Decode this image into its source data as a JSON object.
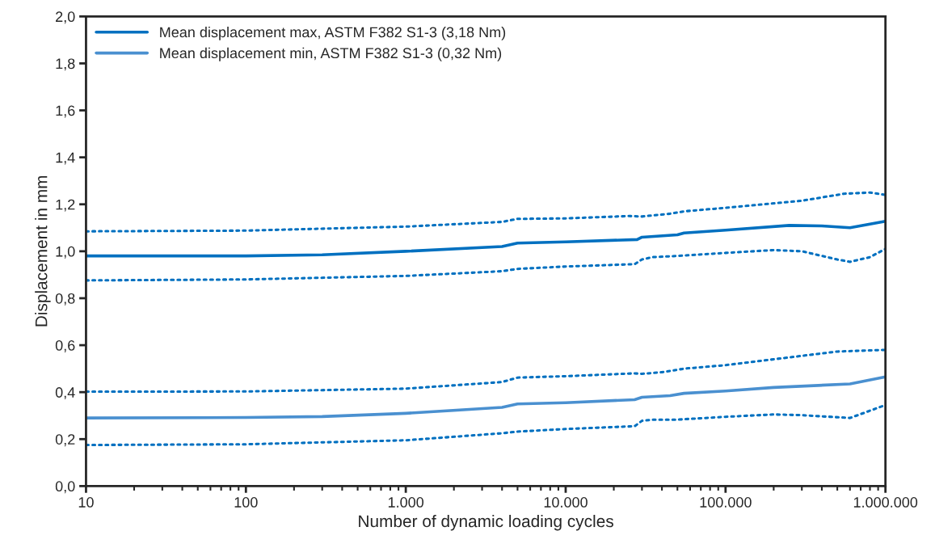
{
  "chart_data": {
    "type": "line",
    "xlabel": "Number of dynamic loading cycles",
    "ylabel": "Displacement in mm",
    "log": "x",
    "grid": false,
    "legend": "top left",
    "xlim": [
      10,
      1000000
    ],
    "xticks": [
      {
        "value": 10,
        "label": "10"
      },
      {
        "value": 100,
        "label": "100"
      },
      {
        "value": 1000,
        "label": "1.000"
      },
      {
        "value": 10000,
        "label": "10.000"
      },
      {
        "value": 100000,
        "label": "100.000"
      },
      {
        "value": 1000000,
        "label": "1.000.000"
      }
    ],
    "ylim": [
      0,
      2
    ],
    "yticks": [
      {
        "value": 0,
        "label": "0,0"
      },
      {
        "value": 0.2,
        "label": "0,2"
      },
      {
        "value": 0.4,
        "label": "0,4"
      },
      {
        "value": 0.6,
        "label": "0,6"
      },
      {
        "value": 0.8,
        "label": "0,8"
      },
      {
        "value": 1.0,
        "label": "1,0"
      },
      {
        "value": 1.2,
        "label": "1,2"
      },
      {
        "value": 1.4,
        "label": "1,4"
      },
      {
        "value": 1.6,
        "label": "1,6"
      },
      {
        "value": 1.8,
        "label": "1,8"
      },
      {
        "value": 2.0,
        "label": "2,0"
      }
    ],
    "series": [
      {
        "name": "Mean displacement max, ASTM F382 S1-3 (3,18 Nm)",
        "color": "#0070c0",
        "line_style": "solid",
        "x": [
          10,
          100,
          300,
          1000,
          4000,
          5000,
          10000,
          28000,
          30000,
          50000,
          55000,
          100000,
          250000,
          400000,
          600000,
          1000000
        ],
        "values": [
          0.98,
          0.98,
          0.985,
          1.0,
          1.02,
          1.035,
          1.04,
          1.05,
          1.06,
          1.07,
          1.078,
          1.09,
          1.11,
          1.108,
          1.1,
          1.128
        ]
      },
      {
        "name": "Mean displacement min, ASTM F382 S1-3 (0,32 Nm)",
        "color": "#4a90d0",
        "line_style": "solid",
        "x": [
          10,
          100,
          300,
          1000,
          4000,
          5000,
          10000,
          27000,
          30000,
          45000,
          55000,
          100000,
          200000,
          600000,
          1000000
        ],
        "values": [
          0.29,
          0.292,
          0.296,
          0.31,
          0.335,
          0.35,
          0.355,
          0.368,
          0.378,
          0.385,
          0.395,
          0.405,
          0.42,
          0.435,
          0.465
        ]
      },
      {
        "color": "#0070c0",
        "line_style": "dotted",
        "x": [
          10,
          100,
          1000,
          4000,
          5000,
          10000,
          25000,
          30000,
          45000,
          55000,
          100000,
          300000,
          550000,
          800000,
          1000000
        ],
        "values": [
          1.085,
          1.088,
          1.105,
          1.125,
          1.138,
          1.14,
          1.15,
          1.148,
          1.16,
          1.17,
          1.185,
          1.215,
          1.245,
          1.25,
          1.24
        ]
      },
      {
        "color": "#0070c0",
        "line_style": "dotted",
        "x": [
          10,
          100,
          1000,
          4000,
          5000,
          10000,
          27000,
          30000,
          35000,
          50000,
          100000,
          200000,
          300000,
          500000,
          600000,
          800000,
          1000000
        ],
        "values": [
          0.876,
          0.88,
          0.895,
          0.915,
          0.925,
          0.935,
          0.945,
          0.965,
          0.975,
          0.98,
          0.993,
          1.005,
          1.0,
          0.965,
          0.955,
          0.975,
          1.01
        ]
      },
      {
        "color": "#0070c0",
        "line_style": "dotted",
        "x": [
          10,
          100,
          1000,
          4000,
          5000,
          10000,
          27000,
          30000,
          40000,
          55000,
          100000,
          200000,
          500000,
          1000000
        ],
        "values": [
          0.402,
          0.403,
          0.415,
          0.443,
          0.462,
          0.468,
          0.48,
          0.478,
          0.485,
          0.5,
          0.515,
          0.54,
          0.573,
          0.58
        ]
      },
      {
        "color": "#0070c0",
        "line_style": "dotted",
        "x": [
          10,
          100,
          1000,
          4000,
          5000,
          10000,
          27000,
          30000,
          35000,
          50000,
          100000,
          200000,
          300000,
          400000,
          600000,
          1000000
        ],
        "values": [
          0.175,
          0.178,
          0.195,
          0.225,
          0.232,
          0.243,
          0.255,
          0.278,
          0.283,
          0.283,
          0.295,
          0.305,
          0.302,
          0.297,
          0.29,
          0.345
        ]
      }
    ]
  }
}
